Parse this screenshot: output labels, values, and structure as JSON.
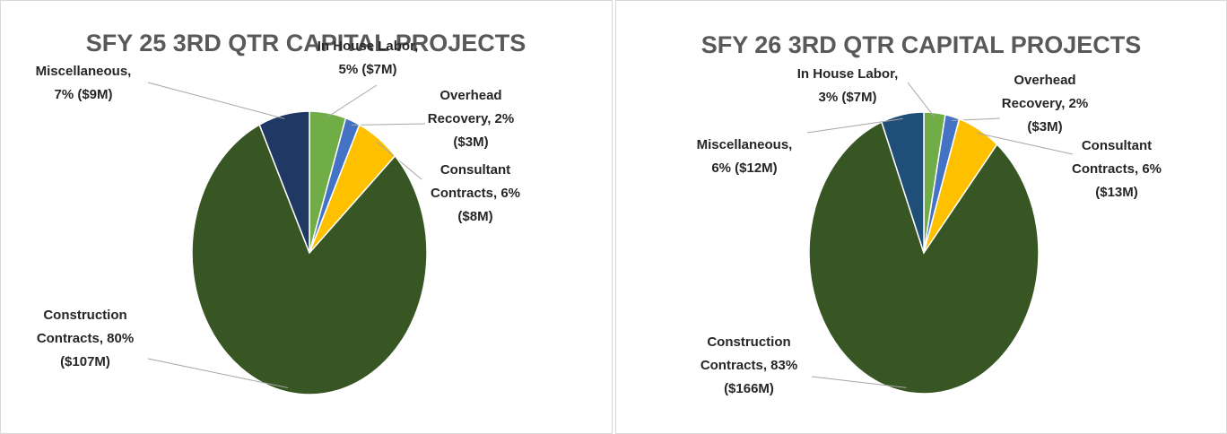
{
  "chart_data": [
    {
      "type": "pie",
      "title": "SFY 25 3RD QTR CAPITAL PROJECTS",
      "values": [
        5,
        2,
        6,
        80,
        7
      ],
      "value_labels": [
        [
          "In House Labor,",
          "5% ($7M)"
        ],
        [
          "Overhead",
          "Recovery, 2%",
          "($3M)"
        ],
        [
          "Consultant",
          "Contracts, 6%",
          "($8M)"
        ],
        [
          "Construction",
          "Contracts, 80%",
          "($107M)"
        ],
        [
          "Miscellaneous,",
          "7% ($9M)"
        ]
      ],
      "colors": [
        "#70ad47",
        "#4472c4",
        "#ffc000",
        "#375623",
        "#1f3864"
      ]
    },
    {
      "type": "pie",
      "title": "SFY 26 3RD QTR CAPITAL PROJECTS",
      "values": [
        3,
        2,
        6,
        83,
        6
      ],
      "value_labels": [
        [
          "In House Labor,",
          "3% ($7M)"
        ],
        [
          "Overhead",
          "Recovery, 2%",
          "($3M)"
        ],
        [
          "Consultant",
          "Contracts, 6%",
          "($13M)"
        ],
        [
          "Construction",
          "Contracts, 83%",
          "($166M)"
        ],
        [
          "Miscellaneous,",
          "6% ($12M)"
        ]
      ],
      "colors": [
        "#70ad47",
        "#4472c4",
        "#ffc000",
        "#375623",
        "#1f4e79"
      ]
    }
  ]
}
